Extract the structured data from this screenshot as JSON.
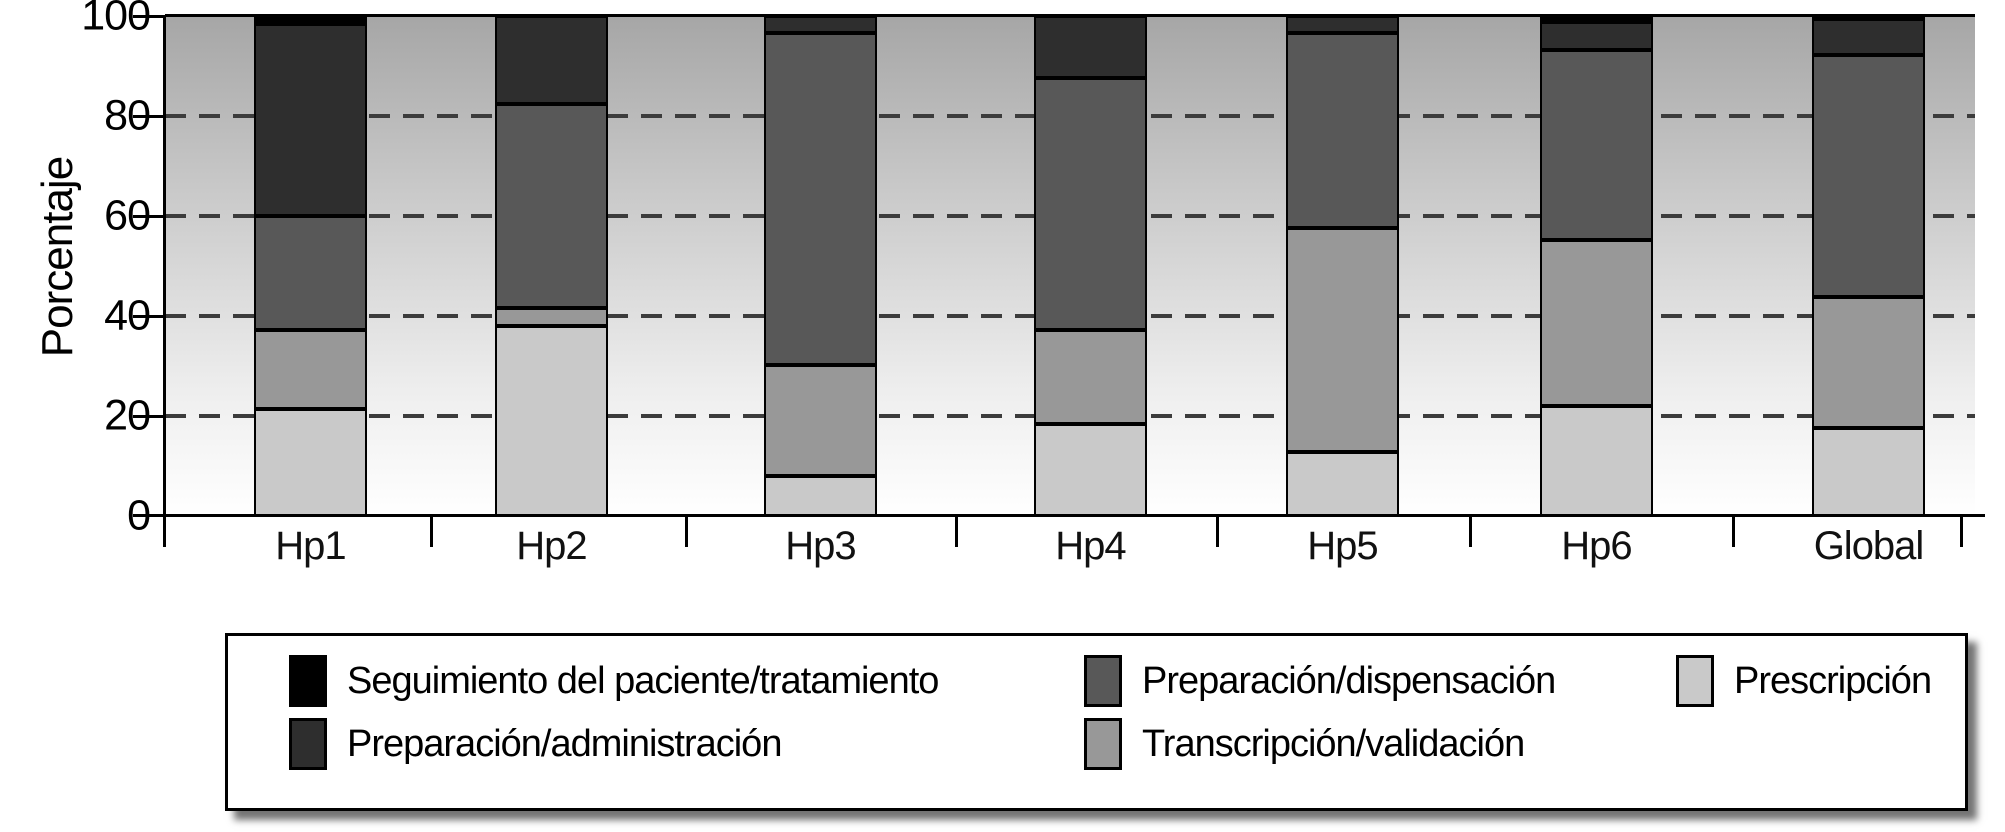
{
  "chart_data": {
    "type": "bar",
    "stacked": true,
    "title": "",
    "xlabel": "",
    "ylabel": "Porcentaje",
    "ylim": [
      0,
      100
    ],
    "yticks": [
      0,
      20,
      40,
      60,
      80,
      100
    ],
    "grid": "horizontal dashed lines at 20/40/60/80",
    "legend_position": "bottom box with shadow, 3 columns",
    "categories": [
      "Hp1",
      "Hp2",
      "Hp3",
      "Hp4",
      "Hp5",
      "Hp6",
      "Global"
    ],
    "series": [
      {
        "name": "Prescripción",
        "color": "#c9c9c9",
        "values": [
          21.4,
          38.0,
          8.0,
          18.4,
          12.8,
          22.0,
          17.6
        ]
      },
      {
        "name": "Transcripción/validación",
        "color": "#989898",
        "values": [
          15.8,
          3.6,
          22.2,
          18.8,
          44.8,
          33.2,
          26.2
        ]
      },
      {
        "name": "Preparación/dispensación",
        "color": "#585858",
        "values": [
          22.8,
          40.9,
          66.4,
          50.4,
          39.0,
          38.0,
          48.4
        ]
      },
      {
        "name": "Preparación/administración",
        "color": "#2e2e2e",
        "values": [
          38.5,
          17.5,
          3.4,
          12.4,
          3.4,
          5.6,
          7.3
        ]
      },
      {
        "name": "Seguimiento del paciente/tratamiento",
        "color": "#000000",
        "values": [
          1.5,
          0.0,
          0.0,
          0.0,
          0.0,
          1.2,
          0.5
        ]
      }
    ]
  },
  "axes": {
    "y_tick_labels": [
      "100",
      "80",
      "60",
      "40",
      "20",
      "0"
    ],
    "y_axis_title": "Porcentaje"
  },
  "legend": {
    "items": [
      {
        "label": "Seguimiento del paciente/tratamiento",
        "color": "#000000",
        "col": 0,
        "row": 0
      },
      {
        "label": "Preparación/administración",
        "color": "#2e2e2e",
        "col": 0,
        "row": 1
      },
      {
        "label": "Preparación/dispensación",
        "color": "#585858",
        "col": 1,
        "row": 0
      },
      {
        "label": "Transcripción/validación",
        "color": "#989898",
        "col": 1,
        "row": 1
      },
      {
        "label": "Prescripción",
        "color": "#c9c9c9",
        "col": 2,
        "row": 0
      }
    ]
  }
}
